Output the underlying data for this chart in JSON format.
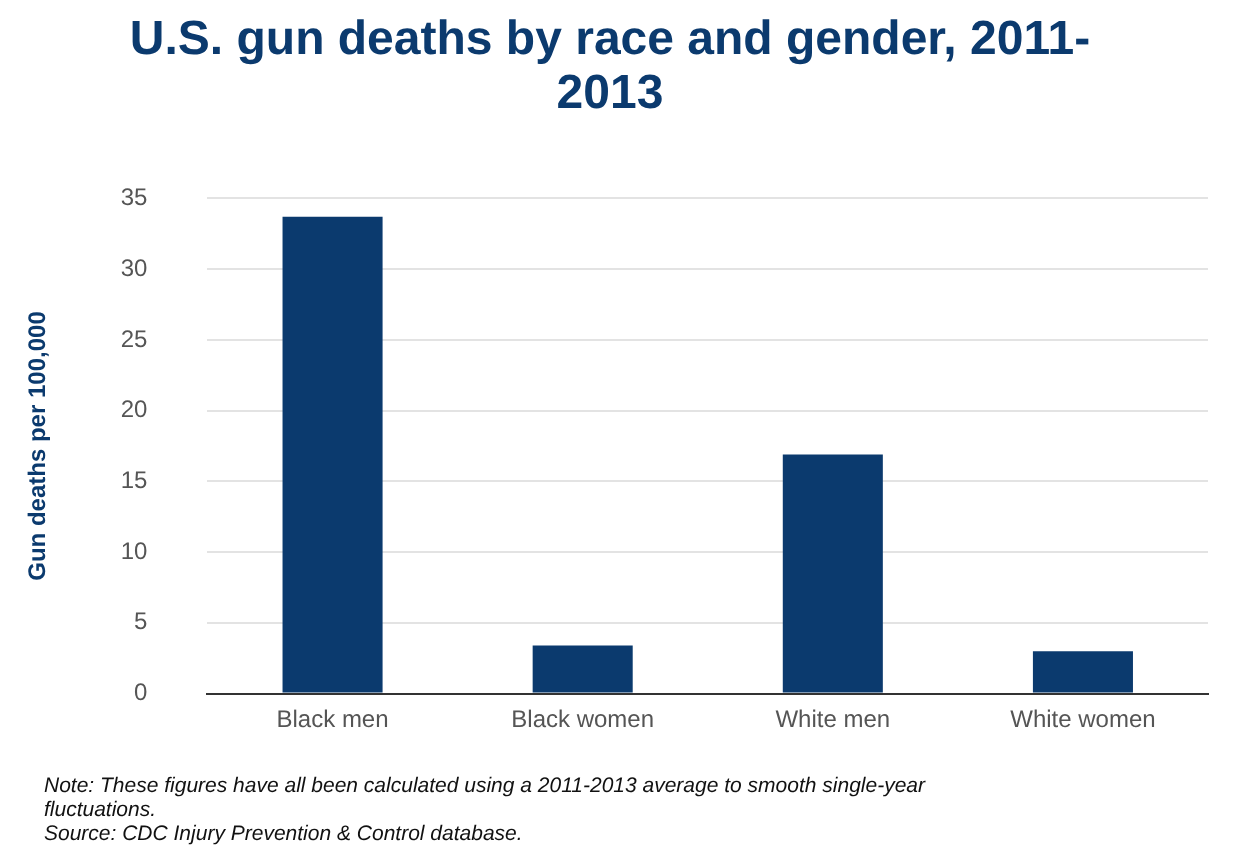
{
  "chart_data": {
    "type": "bar",
    "title": "U.S. gun deaths by race and gender, 2011-2013",
    "ylabel": "Gun deaths per 100,000",
    "categories": [
      "Black men",
      "Black women",
      "White men",
      "White women"
    ],
    "values": [
      33.7,
      3.4,
      16.9,
      3.0
    ],
    "color": "#0b3a6e",
    "ylim": [
      0,
      35
    ],
    "yticks": [
      0,
      5,
      10,
      15,
      20,
      25,
      30,
      35
    ],
    "grid": "y",
    "annotations": [
      "Note: These figures have all been calculated using a 2011-2013 average to smooth single-year fluctuations.",
      "Source: CDC Injury Prevention & Control database."
    ]
  }
}
